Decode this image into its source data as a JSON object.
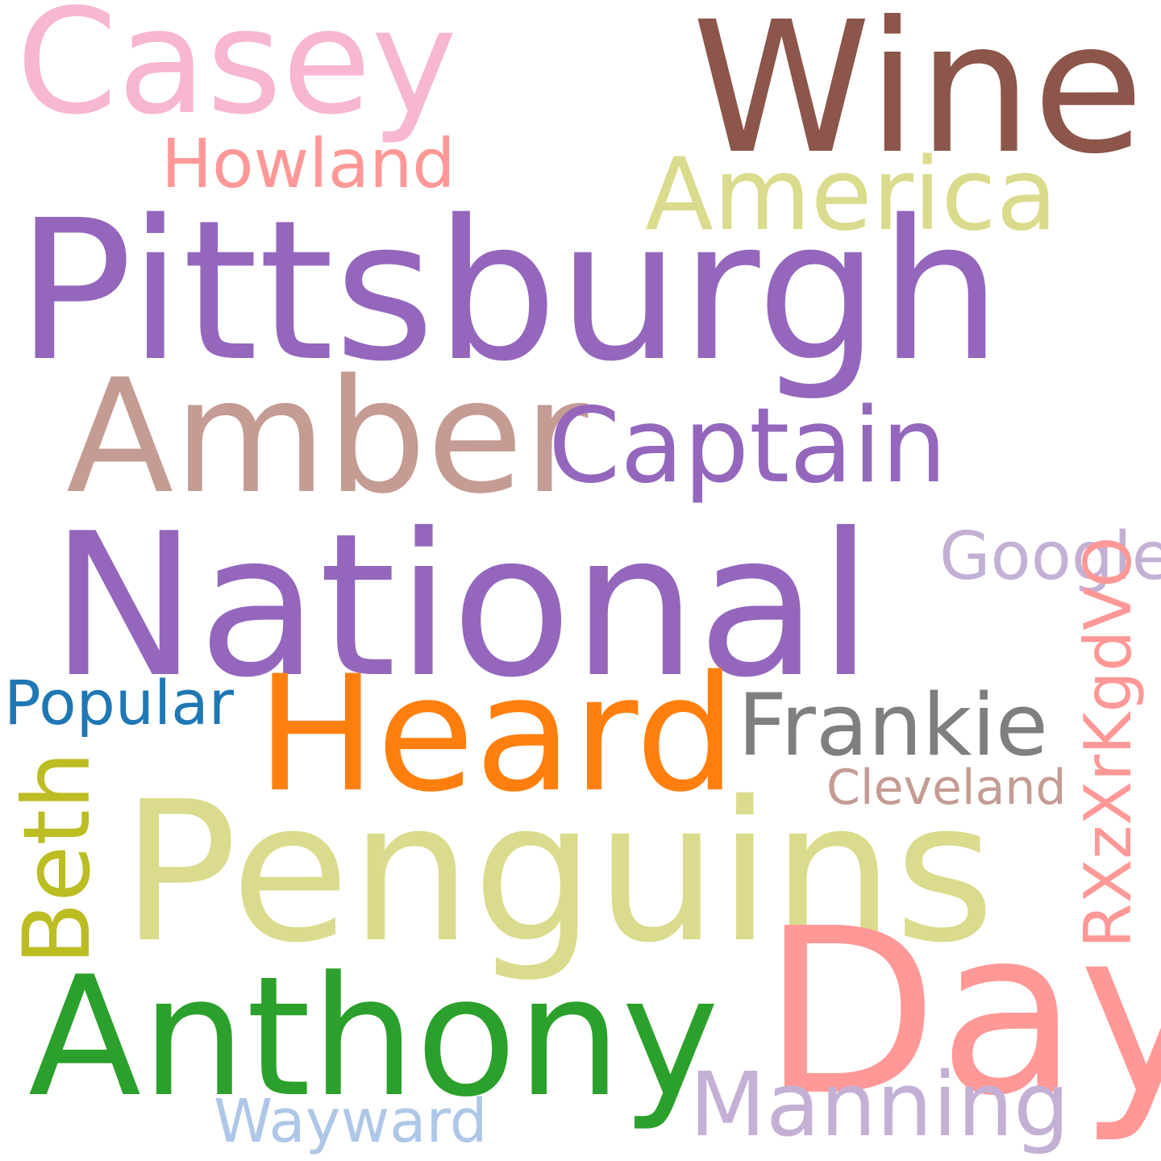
{
  "background": "#ffffff",
  "words": [
    {
      "text": "Casey",
      "color": "#f7b6d2"
    },
    {
      "text": "Wine",
      "color": "#8c564b"
    },
    {
      "text": "Howland",
      "color": "#ff9896"
    },
    {
      "text": "America",
      "color": "#dbdb8d"
    },
    {
      "text": "Pittsburgh",
      "color": "#9467bd"
    },
    {
      "text": "Amber",
      "color": "#c49c94"
    },
    {
      "text": "Captain",
      "color": "#9467bd"
    },
    {
      "text": "National",
      "color": "#9467bd"
    },
    {
      "text": "Google",
      "color": "#c5b0d5"
    },
    {
      "text": "RXzXrKgdVO",
      "color": "#ff9896"
    },
    {
      "text": "Popular",
      "color": "#1f77b4"
    },
    {
      "text": "Heard",
      "color": "#ff7f0e"
    },
    {
      "text": "Frankie",
      "color": "#7f7f7f"
    },
    {
      "text": "Cleveland",
      "color": "#c49c94"
    },
    {
      "text": "Beth",
      "color": "#bcbd22"
    },
    {
      "text": "Penguins",
      "color": "#dbdb8d"
    },
    {
      "text": "Day",
      "color": "#ff9896"
    },
    {
      "text": "Anthony",
      "color": "#2ca02c"
    },
    {
      "text": "Manning",
      "color": "#c5b0d5"
    },
    {
      "text": "Wayward",
      "color": "#aec7e8"
    }
  ]
}
